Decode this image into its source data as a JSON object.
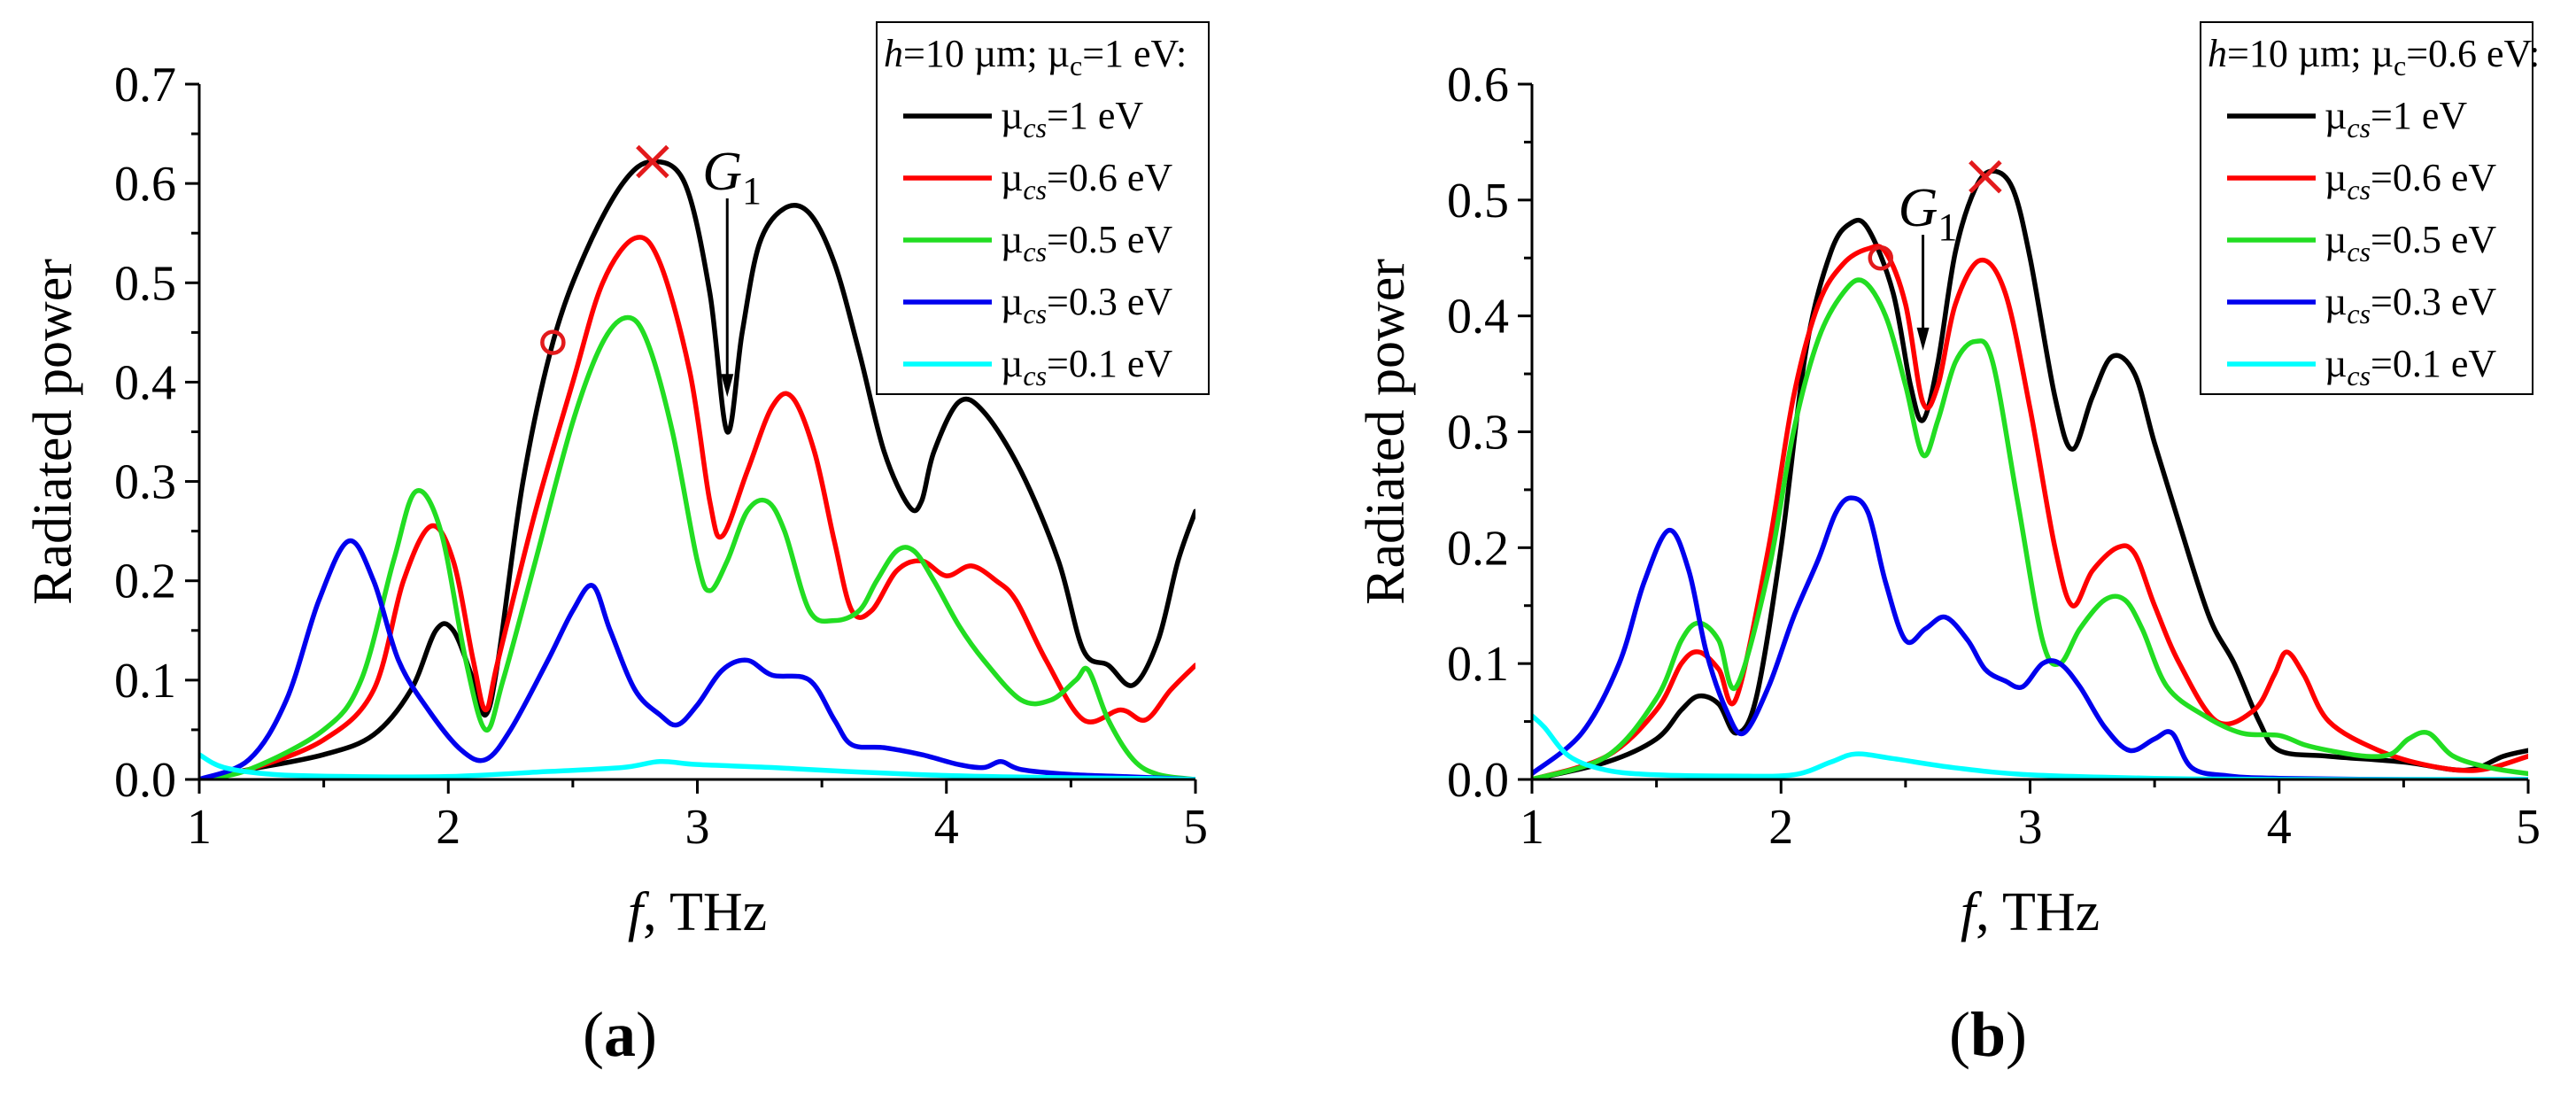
{
  "chart_data": [
    {
      "type": "line",
      "panel_label": "a",
      "title": "",
      "xlabel_italic": "f",
      "xlabel_rest": ", THz",
      "ylabel": "Radiated power",
      "xlim": [
        1,
        5
      ],
      "ylim": [
        0,
        0.7
      ],
      "xticks": [
        1,
        2,
        3,
        4,
        5
      ],
      "xtick_labels": [
        "1",
        "2",
        "3",
        "4",
        "5"
      ],
      "yticks": [
        0,
        0.1,
        0.2,
        0.3,
        0.4,
        0.5,
        0.6,
        0.7
      ],
      "ytick_labels": [
        "0.0",
        "0.1",
        "0.2",
        "0.3",
        "0.4",
        "0.5",
        "0.6",
        "0.7"
      ],
      "legend": {
        "title_h": "h",
        "title_h_value": "=10 µm; ",
        "title_mu": "µ",
        "title_mu_sub": "c",
        "title_mu_value": "=1 eV:",
        "placement": "top-right"
      },
      "annotation": {
        "text": "G",
        "subscript": "1",
        "x": 3.12,
        "y_from": 0.585,
        "y_to": 0.385
      },
      "markers": [
        {
          "symbol": "x",
          "x": 2.82,
          "y": 0.622,
          "color": "#e31a1c"
        },
        {
          "symbol": "o",
          "x": 2.42,
          "y": 0.44,
          "color": "#e31a1c"
        }
      ],
      "series": [
        {
          "name": "1 eV",
          "color": "#000000",
          "x": [
            1.0,
            1.2,
            1.5,
            1.7,
            1.85,
            1.95,
            2.02,
            2.1,
            2.15,
            2.2,
            2.3,
            2.42,
            2.55,
            2.7,
            2.82,
            2.95,
            3.05,
            3.12,
            3.18,
            3.25,
            3.35,
            3.45,
            3.55,
            3.65,
            3.75,
            3.85,
            3.9,
            3.95,
            4.05,
            4.15,
            4.3,
            4.45,
            4.55,
            4.65,
            4.75,
            4.85,
            4.93,
            5.0
          ],
          "y": [
            0.0,
            0.01,
            0.025,
            0.045,
            0.09,
            0.15,
            0.15,
            0.1,
            0.065,
            0.12,
            0.3,
            0.44,
            0.53,
            0.6,
            0.622,
            0.6,
            0.49,
            0.35,
            0.45,
            0.54,
            0.575,
            0.57,
            0.52,
            0.43,
            0.33,
            0.275,
            0.28,
            0.33,
            0.38,
            0.37,
            0.31,
            0.22,
            0.13,
            0.115,
            0.095,
            0.14,
            0.22,
            0.27
          ]
        },
        {
          "name": "0.6 eV",
          "color": "#ff0000",
          "x": [
            1.0,
            1.2,
            1.5,
            1.7,
            1.82,
            1.93,
            2.02,
            2.1,
            2.15,
            2.2,
            2.35,
            2.5,
            2.62,
            2.75,
            2.85,
            2.97,
            3.05,
            3.1,
            3.2,
            3.3,
            3.38,
            3.47,
            3.55,
            3.62,
            3.7,
            3.8,
            3.9,
            4.0,
            4.1,
            4.2,
            4.28,
            4.4,
            4.55,
            4.7,
            4.8,
            4.9,
            5.0
          ],
          "y": [
            0.0,
            0.01,
            0.04,
            0.09,
            0.2,
            0.255,
            0.22,
            0.12,
            0.07,
            0.12,
            0.27,
            0.4,
            0.5,
            0.545,
            0.52,
            0.41,
            0.28,
            0.245,
            0.31,
            0.375,
            0.385,
            0.33,
            0.24,
            0.17,
            0.17,
            0.21,
            0.22,
            0.205,
            0.215,
            0.2,
            0.18,
            0.12,
            0.06,
            0.07,
            0.06,
            0.09,
            0.115
          ]
        },
        {
          "name": "0.5 eV",
          "color": "#22dd22",
          "x": [
            1.0,
            1.2,
            1.5,
            1.65,
            1.78,
            1.87,
            1.97,
            2.07,
            2.15,
            2.22,
            2.35,
            2.5,
            2.62,
            2.72,
            2.8,
            2.9,
            3.0,
            3.05,
            3.12,
            3.2,
            3.28,
            3.35,
            3.45,
            3.55,
            3.65,
            3.72,
            3.8,
            3.87,
            3.95,
            4.05,
            4.15,
            4.3,
            4.42,
            4.52,
            4.57,
            4.65,
            4.75,
            4.85,
            5.0
          ],
          "y": [
            0.0,
            0.01,
            0.05,
            0.1,
            0.22,
            0.29,
            0.25,
            0.12,
            0.05,
            0.1,
            0.22,
            0.36,
            0.44,
            0.465,
            0.44,
            0.35,
            0.22,
            0.19,
            0.22,
            0.27,
            0.28,
            0.25,
            0.17,
            0.16,
            0.17,
            0.2,
            0.23,
            0.23,
            0.2,
            0.155,
            0.12,
            0.08,
            0.08,
            0.1,
            0.11,
            0.06,
            0.02,
            0.005,
            0.0
          ]
        },
        {
          "name": "0.3 eV",
          "color": "#0000ee",
          "x": [
            1.0,
            1.2,
            1.35,
            1.48,
            1.6,
            1.7,
            1.8,
            1.92,
            2.05,
            2.15,
            2.25,
            2.4,
            2.5,
            2.58,
            2.65,
            2.75,
            2.85,
            2.92,
            3.0,
            3.1,
            3.2,
            3.3,
            3.45,
            3.55,
            3.62,
            3.75,
            3.9,
            4.05,
            4.15,
            4.22,
            4.3,
            4.5,
            4.7,
            5.0
          ],
          "y": [
            0.0,
            0.02,
            0.08,
            0.18,
            0.24,
            0.2,
            0.12,
            0.07,
            0.03,
            0.02,
            0.05,
            0.12,
            0.17,
            0.195,
            0.15,
            0.09,
            0.065,
            0.055,
            0.075,
            0.11,
            0.12,
            0.105,
            0.1,
            0.06,
            0.035,
            0.032,
            0.025,
            0.015,
            0.012,
            0.018,
            0.01,
            0.005,
            0.003,
            0.0
          ]
        },
        {
          "name": "0.1 eV",
          "color": "#00ffff",
          "x": [
            1.0,
            1.1,
            1.3,
            1.6,
            2.0,
            2.4,
            2.7,
            2.85,
            3.0,
            3.3,
            3.6,
            4.0,
            4.4,
            4.8,
            5.0
          ],
          "y": [
            0.025,
            0.012,
            0.005,
            0.003,
            0.003,
            0.008,
            0.012,
            0.018,
            0.015,
            0.012,
            0.008,
            0.004,
            0.002,
            0.001,
            0.0
          ]
        }
      ]
    },
    {
      "type": "line",
      "panel_label": "b",
      "title": "",
      "xlabel_italic": "f",
      "xlabel_rest": ", THz",
      "ylabel": "Radiated power",
      "xlim": [
        1,
        5
      ],
      "ylim": [
        0,
        0.6
      ],
      "xticks": [
        1,
        2,
        3,
        4,
        5
      ],
      "xtick_labels": [
        "1",
        "2",
        "3",
        "4",
        "5"
      ],
      "yticks": [
        0,
        0.1,
        0.2,
        0.3,
        0.4,
        0.5,
        0.6
      ],
      "ytick_labels": [
        "0.0",
        "0.1",
        "0.2",
        "0.3",
        "0.4",
        "0.5",
        "0.6"
      ],
      "legend": {
        "title_h": "h",
        "title_h_value": "=10 µm; ",
        "title_mu": "µ",
        "title_mu_sub": "c",
        "title_mu_value": "=0.6 eV:",
        "placement": "top-right"
      },
      "annotation": {
        "text": "G",
        "subscript": "1",
        "x": 2.57,
        "y_from": 0.47,
        "y_to": 0.37
      },
      "markers": [
        {
          "symbol": "x",
          "x": 2.82,
          "y": 0.52,
          "color": "#e31a1c"
        },
        {
          "symbol": "o",
          "x": 2.4,
          "y": 0.45,
          "color": "#e31a1c"
        }
      ],
      "series": [
        {
          "name": "1 eV",
          "color": "#000000",
          "x": [
            1.0,
            1.3,
            1.5,
            1.6,
            1.67,
            1.75,
            1.82,
            1.9,
            2.0,
            2.1,
            2.2,
            2.28,
            2.35,
            2.45,
            2.52,
            2.57,
            2.63,
            2.7,
            2.78,
            2.85,
            2.93,
            3.0,
            3.1,
            3.17,
            3.25,
            3.33,
            3.42,
            3.5,
            3.6,
            3.72,
            3.82,
            3.92,
            4.0,
            4.2,
            4.5,
            4.75,
            4.9,
            5.0
          ],
          "y": [
            0.0,
            0.015,
            0.035,
            0.06,
            0.072,
            0.065,
            0.04,
            0.07,
            0.2,
            0.37,
            0.455,
            0.48,
            0.475,
            0.42,
            0.34,
            0.31,
            0.36,
            0.455,
            0.51,
            0.525,
            0.51,
            0.45,
            0.33,
            0.285,
            0.33,
            0.365,
            0.35,
            0.29,
            0.22,
            0.14,
            0.1,
            0.05,
            0.025,
            0.02,
            0.015,
            0.008,
            0.02,
            0.025
          ]
        },
        {
          "name": "0.6 eV",
          "color": "#ff0000",
          "x": [
            1.0,
            1.3,
            1.5,
            1.6,
            1.67,
            1.75,
            1.82,
            1.95,
            2.05,
            2.15,
            2.25,
            2.35,
            2.42,
            2.5,
            2.57,
            2.63,
            2.7,
            2.8,
            2.9,
            3.0,
            3.1,
            3.17,
            3.25,
            3.35,
            3.42,
            3.5,
            3.6,
            3.75,
            3.9,
            3.98,
            4.03,
            4.1,
            4.2,
            4.4,
            4.6,
            4.8,
            5.0
          ],
          "y": [
            0.0,
            0.02,
            0.06,
            0.1,
            0.11,
            0.095,
            0.07,
            0.2,
            0.33,
            0.41,
            0.445,
            0.458,
            0.455,
            0.41,
            0.325,
            0.34,
            0.41,
            0.448,
            0.42,
            0.32,
            0.2,
            0.15,
            0.18,
            0.2,
            0.195,
            0.15,
            0.1,
            0.05,
            0.06,
            0.09,
            0.11,
            0.09,
            0.05,
            0.025,
            0.012,
            0.008,
            0.02
          ]
        },
        {
          "name": "0.5 eV",
          "color": "#22dd22",
          "x": [
            1.0,
            1.3,
            1.5,
            1.6,
            1.67,
            1.75,
            1.82,
            1.95,
            2.05,
            2.15,
            2.25,
            2.33,
            2.42,
            2.5,
            2.57,
            2.63,
            2.7,
            2.78,
            2.85,
            2.95,
            3.05,
            3.12,
            3.2,
            3.3,
            3.38,
            3.45,
            3.55,
            3.7,
            3.85,
            4.0,
            4.1,
            4.2,
            4.35,
            4.45,
            4.52,
            4.6,
            4.7,
            4.85,
            5.0
          ],
          "y": [
            0.0,
            0.02,
            0.07,
            0.12,
            0.135,
            0.12,
            0.08,
            0.18,
            0.3,
            0.38,
            0.42,
            0.43,
            0.4,
            0.34,
            0.28,
            0.31,
            0.36,
            0.378,
            0.36,
            0.24,
            0.12,
            0.1,
            0.13,
            0.155,
            0.155,
            0.13,
            0.08,
            0.055,
            0.04,
            0.038,
            0.03,
            0.025,
            0.02,
            0.022,
            0.035,
            0.04,
            0.02,
            0.01,
            0.005
          ]
        },
        {
          "name": "0.3 eV",
          "color": "#0000ee",
          "x": [
            1.0,
            1.2,
            1.35,
            1.45,
            1.55,
            1.63,
            1.7,
            1.78,
            1.85,
            1.95,
            2.05,
            2.15,
            2.22,
            2.28,
            2.35,
            2.42,
            2.5,
            2.58,
            2.66,
            2.75,
            2.82,
            2.9,
            2.97,
            3.05,
            3.12,
            3.2,
            3.3,
            3.4,
            3.5,
            3.57,
            3.65,
            3.8,
            4.0,
            4.5,
            5.0
          ],
          "y": [
            0.005,
            0.04,
            0.1,
            0.17,
            0.215,
            0.18,
            0.11,
            0.06,
            0.04,
            0.08,
            0.14,
            0.19,
            0.23,
            0.243,
            0.23,
            0.17,
            0.12,
            0.13,
            0.14,
            0.12,
            0.095,
            0.085,
            0.08,
            0.1,
            0.1,
            0.08,
            0.045,
            0.025,
            0.035,
            0.04,
            0.01,
            0.003,
            0.001,
            0.0,
            0.0
          ]
        },
        {
          "name": "0.1 eV",
          "color": "#00ffff",
          "x": [
            1.0,
            1.05,
            1.15,
            1.3,
            1.5,
            1.8,
            2.05,
            2.2,
            2.3,
            2.45,
            2.7,
            3.0,
            3.5,
            4.0,
            5.0
          ],
          "y": [
            0.055,
            0.045,
            0.02,
            0.008,
            0.004,
            0.003,
            0.004,
            0.015,
            0.022,
            0.018,
            0.01,
            0.004,
            0.001,
            0.0,
            0.0
          ]
        }
      ]
    }
  ]
}
